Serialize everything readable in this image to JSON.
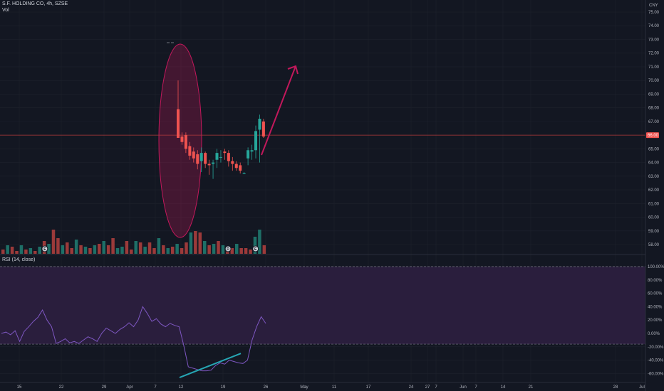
{
  "header": {
    "symbol_line": "S.F. HOLDING CO, 4h, SZSE",
    "vol_label": "Vol",
    "rsi_label": "RSI (14, close)",
    "currency": "CNY"
  },
  "colors": {
    "background": "#131722",
    "grid": "#1e222d",
    "up": "#26a69a",
    "down": "#ef5350",
    "rsi_line": "#7e57c2",
    "rsi_band": "#2a1e3d",
    "annotation": "#c2185b",
    "trendline": "#26a6b4",
    "price_line": "#b13a3a"
  },
  "chart_data": [
    {
      "type": "candlestick",
      "y_ticks": [
        "58.00",
        "59.00",
        "60.00",
        "61.00",
        "62.00",
        "63.00",
        "64.00",
        "65.00",
        "66.00",
        "67.00",
        "68.00",
        "69.00",
        "70.00",
        "71.00",
        "72.00",
        "73.00",
        "74.00",
        "75.00"
      ],
      "ylim": [
        57.5,
        75.5
      ],
      "last_price": 66.0,
      "last_price_label": "66.00",
      "candles": [
        {
          "x": 0,
          "o": 67.9,
          "h": 70.0,
          "l": 65.8,
          "c": 65.8
        },
        {
          "x": 1,
          "o": 65.9,
          "h": 66.2,
          "l": 65.3,
          "c": 65.5
        },
        {
          "x": 2,
          "o": 66.0,
          "h": 66.2,
          "l": 64.7,
          "c": 65.0
        },
        {
          "x": 3,
          "o": 65.2,
          "h": 65.5,
          "l": 64.2,
          "c": 64.5
        },
        {
          "x": 4,
          "o": 64.8,
          "h": 65.1,
          "l": 64.0,
          "c": 64.3
        },
        {
          "x": 5,
          "o": 64.6,
          "h": 64.9,
          "l": 63.5,
          "c": 63.9
        },
        {
          "x": 6,
          "o": 64.1,
          "h": 65.1,
          "l": 63.3,
          "c": 64.7
        },
        {
          "x": 7,
          "o": 64.7,
          "h": 64.8,
          "l": 63.6,
          "c": 63.9
        },
        {
          "x": 8,
          "o": 63.9,
          "h": 64.2,
          "l": 63.1,
          "c": 63.8
        },
        {
          "x": 9,
          "o": 63.9,
          "h": 64.2,
          "l": 62.8,
          "c": 64.0
        },
        {
          "x": 10,
          "o": 64.2,
          "h": 65.0,
          "l": 63.6,
          "c": 64.7
        },
        {
          "x": 11,
          "o": 64.4,
          "h": 64.9,
          "l": 64.0,
          "c": 64.4
        },
        {
          "x": 12,
          "o": 64.8,
          "h": 65.0,
          "l": 64.2,
          "c": 64.7
        },
        {
          "x": 13,
          "o": 64.7,
          "h": 64.9,
          "l": 63.7,
          "c": 64.1
        },
        {
          "x": 14,
          "o": 64.1,
          "h": 64.4,
          "l": 63.4,
          "c": 63.9
        },
        {
          "x": 15,
          "o": 63.9,
          "h": 64.1,
          "l": 63.4,
          "c": 63.6
        },
        {
          "x": 16,
          "o": 63.8,
          "h": 64.0,
          "l": 63.2,
          "c": 63.4
        },
        {
          "x": 17,
          "o": 63.2,
          "h": 63.3,
          "l": 63.2,
          "c": 63.2
        },
        {
          "x": 18,
          "o": 64.3,
          "h": 65.1,
          "l": 63.8,
          "c": 64.9
        },
        {
          "x": 19,
          "o": 64.8,
          "h": 65.3,
          "l": 64.2,
          "c": 64.9
        },
        {
          "x": 20,
          "o": 64.9,
          "h": 66.7,
          "l": 64.3,
          "c": 66.3
        },
        {
          "x": 21,
          "o": 66.4,
          "h": 67.5,
          "l": 64.0,
          "c": 67.2
        },
        {
          "x": 22,
          "o": 67.0,
          "h": 67.2,
          "l": 65.8,
          "c": 65.9
        }
      ],
      "volume": [
        {
          "x": 0,
          "v": 0.15,
          "up": false
        },
        {
          "x": 1,
          "v": 0.3,
          "up": true
        },
        {
          "x": 2,
          "v": 0.25,
          "up": false
        },
        {
          "x": 3,
          "v": 0.1,
          "up": false
        },
        {
          "x": 4,
          "v": 0.3,
          "up": true
        },
        {
          "x": 5,
          "v": 0.15,
          "up": false
        },
        {
          "x": 6,
          "v": 0.2,
          "up": true
        },
        {
          "x": 7,
          "v": 0.1,
          "up": false
        },
        {
          "x": 8,
          "v": 0.25,
          "up": true
        },
        {
          "x": 9,
          "v": 0.45,
          "up": false
        },
        {
          "x": 10,
          "v": 0.35,
          "up": true
        },
        {
          "x": 11,
          "v": 0.85,
          "up": false
        },
        {
          "x": 12,
          "v": 0.55,
          "up": false
        },
        {
          "x": 13,
          "v": 0.3,
          "up": true
        },
        {
          "x": 14,
          "v": 0.4,
          "up": false
        },
        {
          "x": 15,
          "v": 0.2,
          "up": false
        },
        {
          "x": 16,
          "v": 0.5,
          "up": true
        },
        {
          "x": 17,
          "v": 0.3,
          "up": false
        },
        {
          "x": 18,
          "v": 0.25,
          "up": true
        },
        {
          "x": 19,
          "v": 0.2,
          "up": false
        },
        {
          "x": 20,
          "v": 0.3,
          "up": true
        },
        {
          "x": 21,
          "v": 0.35,
          "up": false
        },
        {
          "x": 22,
          "v": 0.45,
          "up": true
        },
        {
          "x": 23,
          "v": 0.3,
          "up": false
        },
        {
          "x": 24,
          "v": 0.55,
          "up": false
        },
        {
          "x": 25,
          "v": 0.2,
          "up": true
        },
        {
          "x": 26,
          "v": 0.25,
          "up": true
        },
        {
          "x": 27,
          "v": 0.45,
          "up": false
        },
        {
          "x": 28,
          "v": 0.15,
          "up": false
        },
        {
          "x": 29,
          "v": 0.45,
          "up": true
        },
        {
          "x": 30,
          "v": 0.4,
          "up": false
        },
        {
          "x": 31,
          "v": 0.25,
          "up": true
        },
        {
          "x": 32,
          "v": 0.4,
          "up": false
        },
        {
          "x": 33,
          "v": 0.2,
          "up": false
        },
        {
          "x": 34,
          "v": 0.55,
          "up": true
        },
        {
          "x": 35,
          "v": 0.3,
          "up": false
        },
        {
          "x": 36,
          "v": 0.2,
          "up": true
        },
        {
          "x": 37,
          "v": 0.25,
          "up": false
        },
        {
          "x": 38,
          "v": 0.35,
          "up": true
        },
        {
          "x": 39,
          "v": 0.2,
          "up": false
        },
        {
          "x": 40,
          "v": 0.4,
          "up": false
        },
        {
          "x": 41,
          "v": 0.75,
          "up": true
        },
        {
          "x": 42,
          "v": 0.8,
          "up": false
        },
        {
          "x": 43,
          "v": 0.75,
          "up": false
        },
        {
          "x": 44,
          "v": 0.45,
          "up": true
        },
        {
          "x": 45,
          "v": 0.3,
          "up": false
        },
        {
          "x": 46,
          "v": 0.35,
          "up": true
        },
        {
          "x": 47,
          "v": 0.45,
          "up": false
        },
        {
          "x": 48,
          "v": 0.3,
          "up": true
        },
        {
          "x": 49,
          "v": 0.25,
          "up": false
        },
        {
          "x": 50,
          "v": 0.2,
          "up": false
        },
        {
          "x": 51,
          "v": 0.35,
          "up": true
        },
        {
          "x": 52,
          "v": 0.2,
          "up": false
        },
        {
          "x": 53,
          "v": 0.2,
          "up": false
        },
        {
          "x": 54,
          "v": 0.15,
          "up": false
        },
        {
          "x": 55,
          "v": 0.6,
          "up": true
        },
        {
          "x": 56,
          "v": 0.85,
          "up": true
        },
        {
          "x": 57,
          "v": 0.3,
          "up": false
        }
      ],
      "events": [
        {
          "x": 9,
          "label": "E"
        },
        {
          "x": 49,
          "label": "D"
        },
        {
          "x": 55,
          "label": "E"
        }
      ]
    },
    {
      "type": "line",
      "name": "RSI (14, close)",
      "y_ticks": [
        "-60.00%",
        "-40.00%",
        "-20.00%",
        "0.00%",
        "20.00%",
        "40.00%",
        "60.00%",
        "80.00%",
        "100.00%"
      ],
      "ylim": [
        -68,
        108
      ],
      "band": [
        -16,
        100
      ],
      "values": [
        0,
        2,
        -2,
        4,
        -12,
        3,
        10,
        18,
        24,
        35,
        20,
        10,
        -15,
        -12,
        -8,
        -14,
        -12,
        -15,
        -10,
        -5,
        -8,
        -12,
        0,
        8,
        4,
        0,
        6,
        10,
        16,
        10,
        20,
        40,
        30,
        18,
        22,
        14,
        10,
        15,
        12,
        10,
        -18,
        -50,
        -52,
        -54,
        -56,
        -56,
        -55,
        -48,
        -44,
        -46,
        -40,
        -42,
        -44,
        -45,
        -40,
        -10,
        10,
        25,
        15
      ]
    }
  ],
  "x_ticks": [
    "15",
    "22",
    "29",
    "Apr",
    "7",
    "12",
    "19",
    "26",
    "May",
    "11",
    "17",
    "24",
    "27",
    "7",
    "Jun",
    "7",
    "14",
    "21",
    "28",
    "Jul"
  ]
}
